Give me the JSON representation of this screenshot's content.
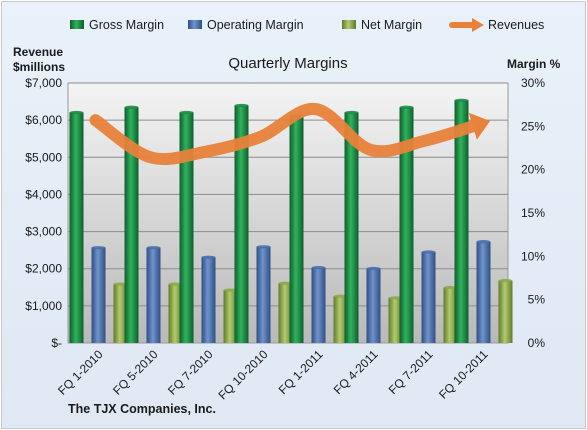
{
  "chart_data": {
    "type": "bar",
    "title": "Quarterly Margins",
    "company": "The TJX Companies, Inc.",
    "left_axis_title": [
      "Revenue",
      "$millions"
    ],
    "right_axis_title": "Margin %",
    "categories": [
      "FQ 1-2010",
      "FQ 5-2010",
      "FQ 7-2010",
      "FQ 10-2010",
      "FQ 1-2011",
      "FQ 4-2011",
      "FQ 7-2011",
      "FQ 10-2011"
    ],
    "left_ticks": [
      "$-",
      "$1,000",
      "$2,000",
      "$3,000",
      "$4,000",
      "$5,000",
      "$6,000",
      "$7,000"
    ],
    "right_ticks": [
      "0%",
      "5%",
      "10%",
      "15%",
      "20%",
      "25%",
      "30%"
    ],
    "left_ylim": [
      0,
      7000
    ],
    "right_ylim": [
      0,
      30
    ],
    "grid": true,
    "legend_position": "top",
    "series": [
      {
        "name": "Gross Margin",
        "axis": "right",
        "color": "#1e8a45",
        "values": [
          26.6,
          27.2,
          26.6,
          27.4,
          26.2,
          26.6,
          27.2,
          28.0
        ]
      },
      {
        "name": "Operating Margin",
        "axis": "right",
        "color": "#4a6fa8",
        "values": [
          11.0,
          11.0,
          9.9,
          11.1,
          8.7,
          8.6,
          10.5,
          11.7
        ]
      },
      {
        "name": "Net Margin",
        "axis": "right",
        "color": "#8aa84a",
        "values": [
          6.8,
          6.8,
          6.1,
          6.9,
          5.4,
          5.2,
          6.4,
          7.2
        ]
      }
    ],
    "line_series": {
      "name": "Revenues",
      "axis": "left",
      "color": "#e8823a",
      "values": [
        6000,
        5000,
        5150,
        5550,
        6300,
        5200,
        5450,
        5900
      ]
    }
  }
}
